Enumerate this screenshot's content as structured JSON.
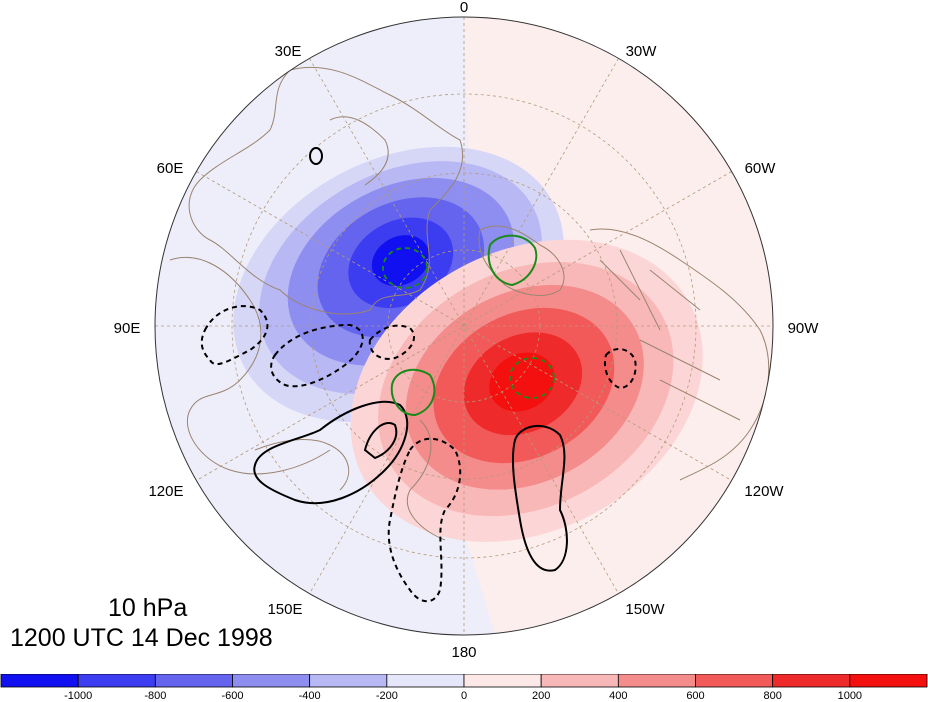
{
  "title": {
    "level": "10 hPa",
    "time": "1200 UTC 14 Dec 1998"
  },
  "longitude_labels": {
    "top": "0",
    "lon_30e": "30E",
    "lon_30w": "30W",
    "lon_60e": "60E",
    "lon_60w": "60W",
    "lon_90e": "90E",
    "lon_90w": "90W",
    "lon_120e": "120E",
    "lon_120w": "120W",
    "lon_150e": "150E",
    "lon_150w": "150W",
    "bottom": "180"
  },
  "colorbar": {
    "labels": [
      "-1000",
      "-800",
      "-600",
      "-400",
      "-200",
      "0",
      "200",
      "400",
      "600",
      "800",
      "1000"
    ],
    "colors": [
      "#1010f0",
      "#3c3cf0",
      "#6464ee",
      "#8e8ef0",
      "#b8b8f5",
      "#e6e6fb",
      "#fde8e8",
      "#f9b8b8",
      "#f58c8c",
      "#f25a5a",
      "#ef2a2a",
      "#f51010"
    ]
  },
  "map_colors": {
    "background_negative": "#eeeefb",
    "background_positive": "#fdeeee",
    "coastline": "#9a8470",
    "graticule": "#b49a78",
    "contour_black": "#000000",
    "contour_green": "#1a8a1a"
  }
}
